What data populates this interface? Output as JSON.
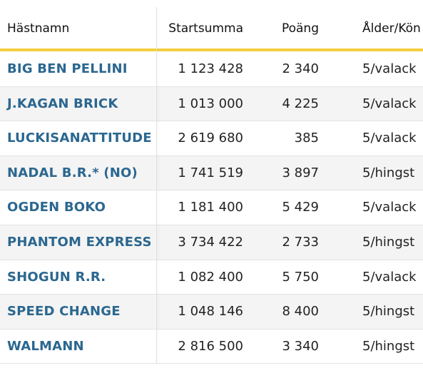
{
  "table": {
    "header": [
      "Hästnamn",
      "Startsumma",
      "Poäng",
      "Ålder/Kön"
    ],
    "rows": [
      [
        "BIG BEN PELLINI",
        "1 123 428",
        "2 340",
        "5/valack"
      ],
      [
        "J.KAGAN BRICK",
        "1 013 000",
        "4 225",
        "5/valack"
      ],
      [
        "LUCKISANATTITUDE",
        "2 619 680",
        "385",
        "5/valack"
      ],
      [
        "NADAL B.R.* (NO)",
        "1 741 519",
        "3 897",
        "5/hingst"
      ],
      [
        "OGDEN BOKO",
        "1 181 400",
        "5 429",
        "5/valack"
      ],
      [
        "PHANTOM EXPRESS",
        "3 734 422",
        "2 733",
        "5/hingst"
      ],
      [
        "SHOGUN R.R.",
        "1 082 400",
        "5 750",
        "5/valack"
      ],
      [
        "SPEED CHANGE",
        "1 048 146",
        "8 400",
        "5/hingst"
      ],
      [
        "WALMANN",
        "2 816 500",
        "3 340",
        "5/hingst"
      ]
    ]
  }
}
